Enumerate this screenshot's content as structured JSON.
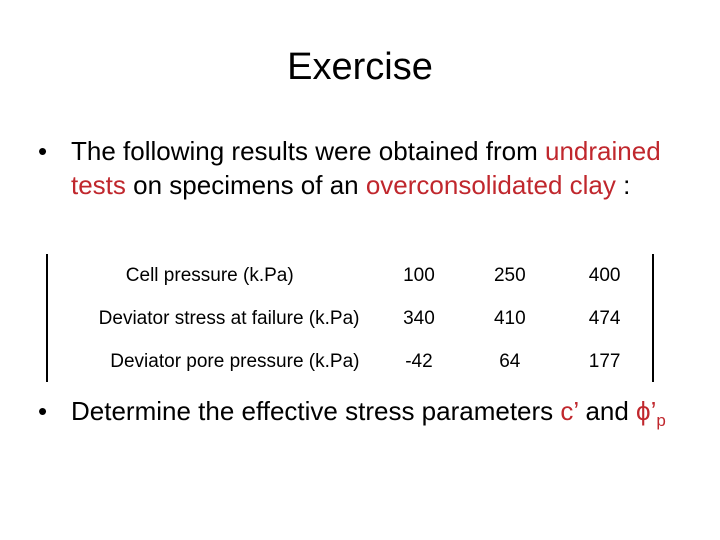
{
  "slide": {
    "title": "Exercise",
    "bullet1": {
      "part1": "The following results were obtained from ",
      "part2": "undrained tests",
      "part3": " on specimens of an ",
      "part4": "overconsolidated clay",
      "part5": " :"
    },
    "bullet2": {
      "part1": "Determine the effective stress parameters ",
      "part2": "c’",
      "part3": " and ",
      "part4": "ϕ’",
      "part5": "p"
    },
    "bullet_symbol": "•",
    "accent_color": "#c0272d"
  },
  "table": {
    "rows": [
      {
        "label": "Cell pressure (k.Pa)",
        "values": [
          "100",
          "250",
          "400"
        ]
      },
      {
        "label": "Deviator stress at failure (k.Pa)",
        "values": [
          "340",
          "410",
          "474"
        ]
      },
      {
        "label": "Deviator pore pressure (k.Pa)",
        "values": [
          "-42",
          "64",
          "177"
        ]
      }
    ]
  }
}
